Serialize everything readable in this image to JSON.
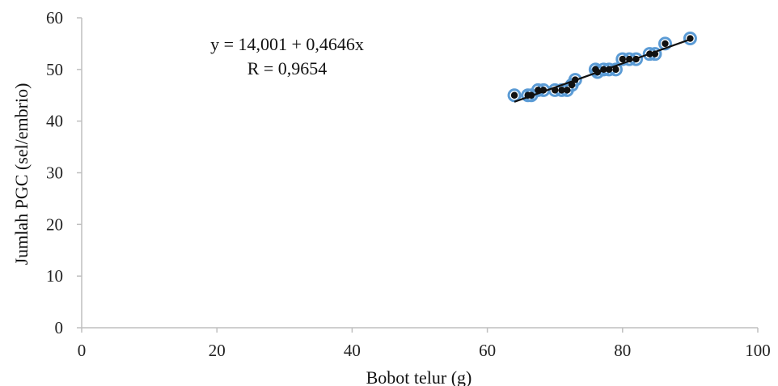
{
  "chart_data": {
    "type": "scatter",
    "title": "",
    "xlabel": "Bobot telur (g)",
    "ylabel": "Jumlah PGC (sel/embrio)",
    "xlim": [
      0,
      100
    ],
    "ylim": [
      0,
      60
    ],
    "x_ticks": [
      "0",
      "20",
      "40",
      "60",
      "80",
      "100"
    ],
    "y_ticks": [
      "0",
      "10",
      "20",
      "30",
      "40",
      "50",
      "60"
    ],
    "grid": false,
    "legend": "none",
    "points": [
      {
        "x": 64,
        "y": 45
      },
      {
        "x": 66,
        "y": 45
      },
      {
        "x": 66.5,
        "y": 45
      },
      {
        "x": 67.5,
        "y": 46
      },
      {
        "x": 68.3,
        "y": 46
      },
      {
        "x": 70,
        "y": 46
      },
      {
        "x": 71,
        "y": 46
      },
      {
        "x": 71.8,
        "y": 46
      },
      {
        "x": 72.5,
        "y": 47
      },
      {
        "x": 73,
        "y": 48
      },
      {
        "x": 76,
        "y": 50
      },
      {
        "x": 76.3,
        "y": 49.5
      },
      {
        "x": 77.2,
        "y": 50
      },
      {
        "x": 78,
        "y": 50
      },
      {
        "x": 79,
        "y": 50
      },
      {
        "x": 80,
        "y": 52
      },
      {
        "x": 81,
        "y": 52
      },
      {
        "x": 82,
        "y": 52
      },
      {
        "x": 84,
        "y": 53
      },
      {
        "x": 84.8,
        "y": 53
      },
      {
        "x": 86.3,
        "y": 55
      },
      {
        "x": 90,
        "y": 56
      }
    ],
    "trendline": {
      "intercept": 14.001,
      "slope": 0.4646,
      "x_range": [
        64,
        90
      ]
    },
    "annotations": [
      "y = 14,001 + 0,4646x",
      "R = 0,9654"
    ],
    "colors": {
      "marker_fill": "#111111",
      "marker_halo": "#5b9bd5",
      "trendline": "#111111",
      "axis": "#bfbfbf"
    }
  }
}
